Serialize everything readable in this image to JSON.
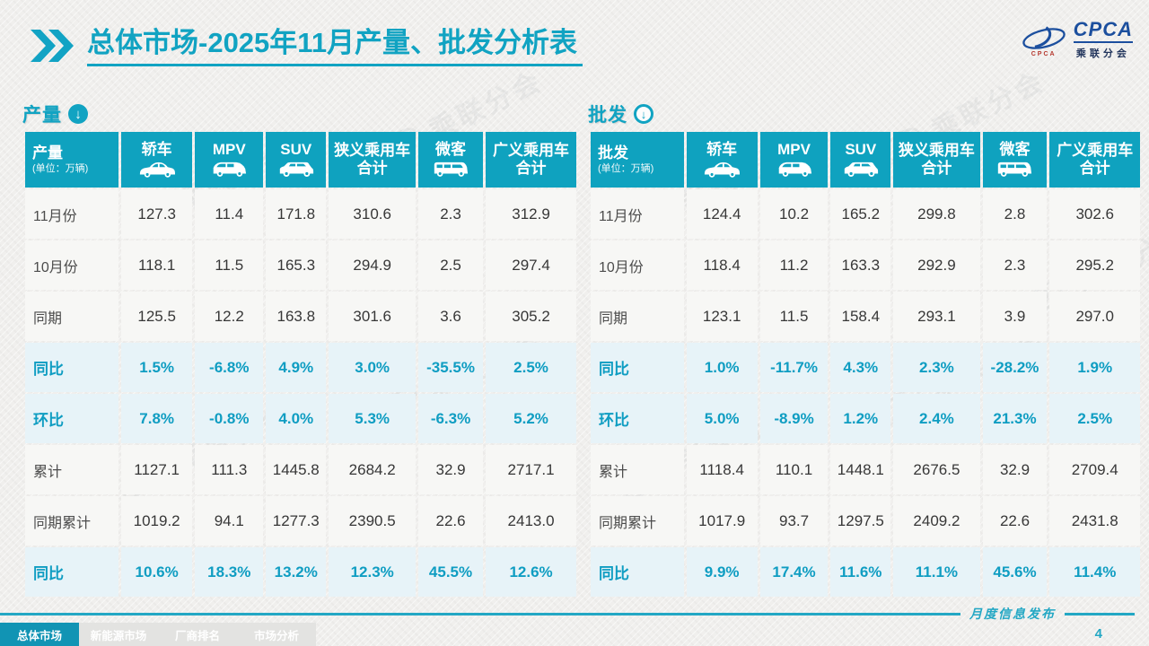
{
  "page": {
    "title_primary": "总体市场",
    "title_secondary": "-2025年11月产量、批发分析表",
    "footer_label": "月度信息发布",
    "page_number": "4",
    "watermark_text": "乘联分会"
  },
  "logo": {
    "acronym": "CPCA",
    "cn_name": "乘联分会",
    "red_text": "CPCA"
  },
  "colors": {
    "accent": "#11a3c2",
    "header_bg": "#0fa2bf",
    "highlight_bg": "#e7f3f8",
    "highlight_text": "#0f9dc2",
    "logo_blue": "#1c4f9e"
  },
  "columns": [
    {
      "label": "轿车",
      "icon": "sedan-icon"
    },
    {
      "label": "MPV",
      "icon": "mpv-icon"
    },
    {
      "label": "SUV",
      "icon": "suv-icon"
    },
    {
      "label": "狭义乘用车\n合计",
      "icon": ""
    },
    {
      "label": "微客",
      "icon": "microvan-icon"
    },
    {
      "label": "广义乘用车\n合计",
      "icon": ""
    }
  ],
  "tables": [
    {
      "section_label": "产量",
      "arrow_style": "solid",
      "corner_title": "产量",
      "corner_unit": "(单位：万辆)",
      "rows": [
        {
          "label": "11月份",
          "type": "normal",
          "values": [
            "127.3",
            "11.4",
            "171.8",
            "310.6",
            "2.3",
            "312.9"
          ]
        },
        {
          "label": "10月份",
          "type": "normal",
          "values": [
            "118.1",
            "11.5",
            "165.3",
            "294.9",
            "2.5",
            "297.4"
          ]
        },
        {
          "label": "同期",
          "type": "normal",
          "values": [
            "125.5",
            "12.2",
            "163.8",
            "301.6",
            "3.6",
            "305.2"
          ]
        },
        {
          "label": "同比",
          "type": "hl",
          "values": [
            "1.5%",
            "-6.8%",
            "4.9%",
            "3.0%",
            "-35.5%",
            "2.5%"
          ]
        },
        {
          "label": "环比",
          "type": "hl",
          "values": [
            "7.8%",
            "-0.8%",
            "4.0%",
            "5.3%",
            "-6.3%",
            "5.2%"
          ]
        },
        {
          "label": "累计",
          "type": "normal",
          "values": [
            "1127.1",
            "111.3",
            "1445.8",
            "2684.2",
            "32.9",
            "2717.1"
          ]
        },
        {
          "label": "同期累计",
          "type": "normal",
          "values": [
            "1019.2",
            "94.1",
            "1277.3",
            "2390.5",
            "22.6",
            "2413.0"
          ]
        },
        {
          "label": "同比",
          "type": "hl",
          "values": [
            "10.6%",
            "18.3%",
            "13.2%",
            "12.3%",
            "45.5%",
            "12.6%"
          ]
        }
      ]
    },
    {
      "section_label": "批发",
      "arrow_style": "ring",
      "corner_title": "批发",
      "corner_unit": "(单位：万辆)",
      "rows": [
        {
          "label": "11月份",
          "type": "normal",
          "values": [
            "124.4",
            "10.2",
            "165.2",
            "299.8",
            "2.8",
            "302.6"
          ]
        },
        {
          "label": "10月份",
          "type": "normal",
          "values": [
            "118.4",
            "11.2",
            "163.3",
            "292.9",
            "2.3",
            "295.2"
          ]
        },
        {
          "label": "同期",
          "type": "normal",
          "values": [
            "123.1",
            "11.5",
            "158.4",
            "293.1",
            "3.9",
            "297.0"
          ]
        },
        {
          "label": "同比",
          "type": "hl",
          "values": [
            "1.0%",
            "-11.7%",
            "4.3%",
            "2.3%",
            "-28.2%",
            "1.9%"
          ]
        },
        {
          "label": "环比",
          "type": "hl",
          "values": [
            "5.0%",
            "-8.9%",
            "1.2%",
            "2.4%",
            "21.3%",
            "2.5%"
          ]
        },
        {
          "label": "累计",
          "type": "normal",
          "values": [
            "1118.4",
            "110.1",
            "1448.1",
            "2676.5",
            "32.9",
            "2709.4"
          ]
        },
        {
          "label": "同期累计",
          "type": "normal",
          "values": [
            "1017.9",
            "93.7",
            "1297.5",
            "2409.2",
            "22.6",
            "2431.8"
          ]
        },
        {
          "label": "同比",
          "type": "hl",
          "values": [
            "9.9%",
            "17.4%",
            "11.6%",
            "11.1%",
            "45.6%",
            "11.4%"
          ]
        }
      ]
    }
  ],
  "tabs": [
    {
      "label": "总体市场",
      "active": true
    },
    {
      "label": "新能源市场",
      "active": false
    },
    {
      "label": "厂商排名",
      "active": false
    },
    {
      "label": "市场分析",
      "active": false
    }
  ]
}
